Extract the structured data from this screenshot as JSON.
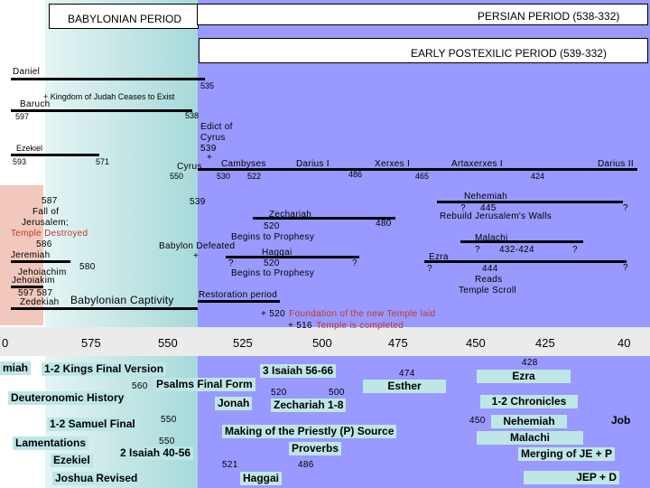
{
  "colors": {
    "persian": "#9999ff",
    "babylonian_start": "#e6f4f4",
    "babylonian_end": "#a6d9d9",
    "early": "#f2c7bc",
    "axis_band": "#ebebeb",
    "text_red": "#c0392b",
    "label_bg": "#bfe6e6"
  },
  "headers": {
    "babylonian": "BABYLONIAN PERIOD",
    "persian": "PERSIAN PERIOD (538-332)",
    "postexilic": "EARLY POSTEXILIC PERIOD (539-332)"
  },
  "upper": {
    "daniel": "Daniel",
    "daniel_end": "535",
    "kingdom_ceases": "+ Kingdom of Judah Ceases to Exist",
    "baruch": "Baruch",
    "baruch_start": "597",
    "cyrus_start": "538",
    "edict": [
      "Edict of",
      "Cyrus",
      "539",
      "+"
    ],
    "cyrus": "Cyrus",
    "cyrus_year": "550",
    "ezekiel": "Ezekiel",
    "ezekiel_start": "593",
    "ezekiel_end": "571",
    "cambyses": "Cambyses",
    "cambyses_years": [
      "530",
      "522"
    ],
    "darius1": "Darius I",
    "darius1_end": "486",
    "xerxes": "Xerxes I",
    "xerxes_end": "465",
    "artaxerxes": "Artaxerxes I",
    "artaxerxes_end": "424",
    "darius2": "Darius II",
    "fall": [
      "587",
      "Fall of",
      "Jerusalem;"
    ],
    "temple_destroyed": "Temple Destroyed",
    "y586": "586",
    "jeremiah": "Jeremiah",
    "jehoiachim": "Jehoiachim",
    "y580": "580",
    "jehoiakim": "Jehoiakim",
    "zedekiah_years": "597  587",
    "zedekiah": "Zedekiah",
    "captivity": "Babylonian Captivity",
    "y539": "539",
    "zechariah": "Zechariah",
    "zech_start": "520",
    "zech_end": "480",
    "begins_prophesy_1": "Begins to Prophesy",
    "babylon_defeated": "Babylon Defeated",
    "plus": "+",
    "haggai": "Haggai",
    "haggai_start_q": "?",
    "haggai_start": "520",
    "haggai_end_q": "?",
    "begins_prophesy_2": "Begins to Prophesy",
    "restoration": "Restoration period",
    "foundation_year": "+ 520",
    "foundation_text": "Foundation of the new Temple laid",
    "completed_year": "+ 516",
    "completed_text": "Temple is completed",
    "nehemiah": "Nehemiah",
    "nehemiah_q": "?",
    "nehemiah_year": "445",
    "nehemiah_end_q": "?",
    "rebuild": "Rebuild Jerusalem's Walls",
    "malachi": "Malachi",
    "malachi_q": "?",
    "malachi_years": "432-424",
    "malachi_end_q": "?",
    "ezra": "Ezra",
    "ezra_q": "?",
    "ezra_year": "444",
    "reads": "Reads",
    "temple_scroll": "Temple Scroll",
    "ezra_end_q": "?"
  },
  "axis": [
    "0",
    "575",
    "550",
    "525",
    "500",
    "475",
    "450",
    "425",
    "40"
  ],
  "lower": {
    "miah": "miah",
    "kings": "1-2 Kings Final Version",
    "y560": "560",
    "psalms": "Psalms Final Form",
    "deuteronomic": "Deuteronomic History",
    "samuel": "1-2 Samuel Final",
    "y550a": "550",
    "lamentations": "Lamentations",
    "y550b": "550",
    "ezekiel": "Ezekiel",
    "isaiah2": "2 Isaiah 40-56",
    "joshua": "Joshua Revised",
    "isaiah3": "3 Isaiah 56-66",
    "jonah": "Jonah",
    "zech_520": "520",
    "zech_500": "500",
    "zechariah18": "Zechariah 1-8",
    "priestly": "Making of the Priestly (P) Source",
    "proverbs": "Proverbs",
    "y521": "521",
    "y486": "486",
    "haggai": "Haggai",
    "y474": "474",
    "esther": "Esther",
    "y428": "428",
    "ezra": "Ezra",
    "chronicles": "1-2 Chronicles",
    "y450": "450",
    "nehemiah": "Nehemiah",
    "job": "Job",
    "malachi": "Malachi",
    "merging": "Merging of JE + P",
    "jepd": "JEP + D"
  }
}
